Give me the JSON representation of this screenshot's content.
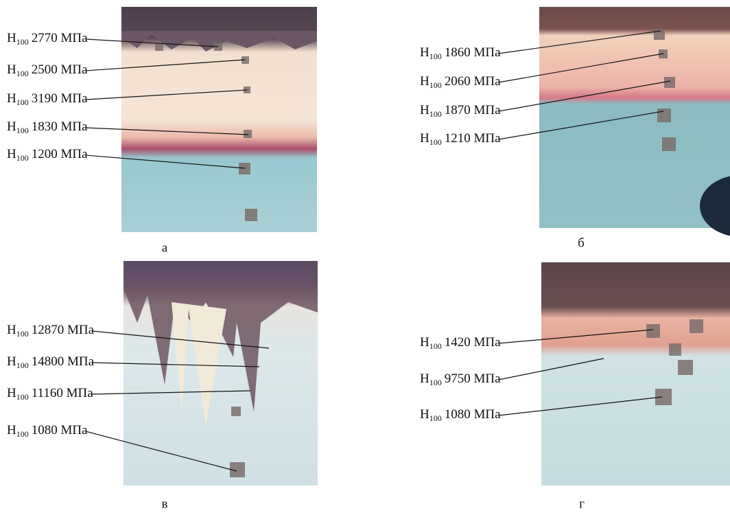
{
  "panels": [
    {
      "caption": "а",
      "labels": [
        {
          "symbol": "H",
          "sub": "100",
          "text": "2770 МПа"
        },
        {
          "symbol": "H",
          "sub": "100",
          "text": "2500 МПа"
        },
        {
          "symbol": "H",
          "sub": "100",
          "text": "3190 МПа"
        },
        {
          "symbol": "H",
          "sub": "100",
          "text": "1830 МПа"
        },
        {
          "symbol": "H",
          "sub": "100",
          "text": "1200 МПа"
        }
      ]
    },
    {
      "caption": "б",
      "labels": [
        {
          "symbol": "H",
          "sub": "100",
          "text": "1860 МПа"
        },
        {
          "symbol": "H",
          "sub": "100",
          "text": "2060 МПа"
        },
        {
          "symbol": "H",
          "sub": "100",
          "text": "1870 МПа"
        },
        {
          "symbol": "H",
          "sub": "100",
          "text": "1210 МПа"
        }
      ]
    },
    {
      "caption": "в",
      "labels": [
        {
          "symbol": "H",
          "sub": "100",
          "text": "12870 МПа"
        },
        {
          "symbol": "H",
          "sub": "100",
          "text": "14800 МПа"
        },
        {
          "symbol": "H",
          "sub": "100",
          "text": "11160 МПа"
        },
        {
          "symbol": "H",
          "sub": "100",
          "text": "1080 МПа"
        }
      ]
    },
    {
      "caption": "г",
      "labels": [
        {
          "symbol": "H",
          "sub": "100",
          "text": "1420 МПа"
        },
        {
          "symbol": "H",
          "sub": "100",
          "text": "9750 МПа"
        },
        {
          "symbol": "H",
          "sub": "100",
          "text": "1080 МПа"
        }
      ]
    }
  ]
}
